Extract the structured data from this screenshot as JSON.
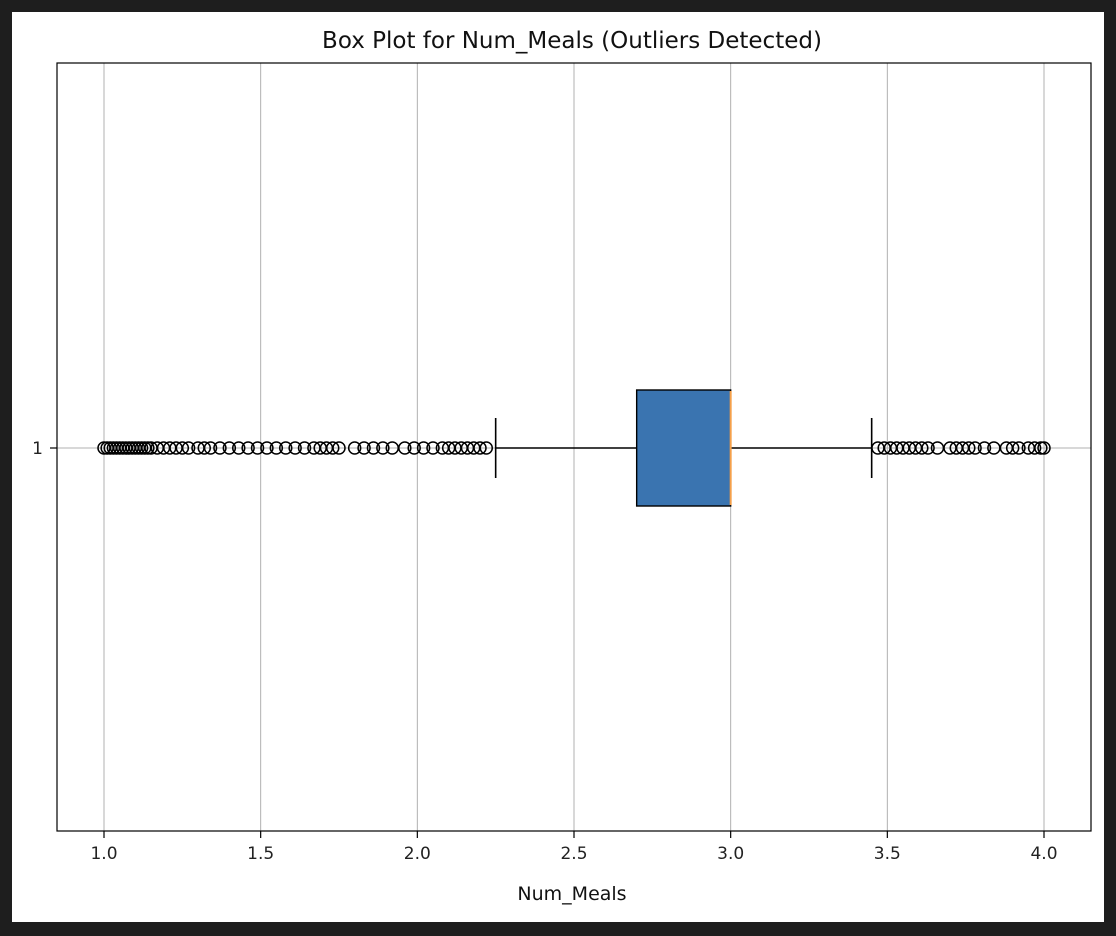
{
  "chart_data": {
    "type": "boxplot",
    "title": "Box Plot for Num_Meals (Outliers Detected)",
    "xlabel": "Num_Meals",
    "ylabel": "",
    "orientation": "horizontal",
    "xlim": [
      0.85,
      4.15
    ],
    "xticks": [
      1.0,
      1.5,
      2.0,
      2.5,
      3.0,
      3.5,
      4.0
    ],
    "xtick_labels": [
      "1.0",
      "1.5",
      "2.0",
      "2.5",
      "3.0",
      "3.5",
      "4.0"
    ],
    "yticks": [
      1
    ],
    "ytick_labels": [
      "1"
    ],
    "grid": true,
    "box": {
      "position": 1,
      "q1": 2.7,
      "median": 3.0,
      "q3": 3.0,
      "whisker_low": 2.25,
      "whisker_high": 3.45
    },
    "outliers": [
      1.0,
      1.01,
      1.02,
      1.03,
      1.04,
      1.05,
      1.06,
      1.07,
      1.08,
      1.09,
      1.1,
      1.11,
      1.12,
      1.13,
      1.14,
      1.15,
      1.17,
      1.19,
      1.21,
      1.23,
      1.25,
      1.27,
      1.3,
      1.32,
      1.34,
      1.37,
      1.4,
      1.43,
      1.46,
      1.49,
      1.52,
      1.55,
      1.58,
      1.61,
      1.64,
      1.67,
      1.69,
      1.71,
      1.73,
      1.75,
      1.8,
      1.83,
      1.86,
      1.89,
      1.92,
      1.96,
      1.99,
      2.02,
      2.05,
      2.08,
      2.1,
      2.12,
      2.14,
      2.16,
      2.18,
      2.2,
      2.22,
      3.47,
      3.49,
      3.51,
      3.53,
      3.55,
      3.57,
      3.59,
      3.61,
      3.63,
      3.66,
      3.7,
      3.72,
      3.74,
      3.76,
      3.78,
      3.81,
      3.84,
      3.88,
      3.9,
      3.92,
      3.95,
      3.97,
      3.99,
      4.0
    ],
    "colors": {
      "box_fill": "#3a74b0",
      "median": "#f5a04a",
      "outline": "#000000",
      "grid": "#b0b0b0"
    }
  }
}
